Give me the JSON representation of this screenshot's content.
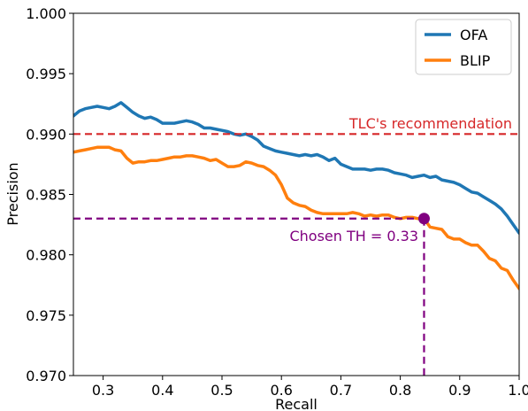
{
  "chart_data": {
    "type": "line",
    "xlabel": "Recall",
    "ylabel": "Precision",
    "xlim": [
      0.25,
      1.0
    ],
    "ylim": [
      0.97,
      1.0
    ],
    "x_ticks": [
      0.3,
      0.4,
      0.5,
      0.6,
      0.7,
      0.8,
      0.9,
      1.0
    ],
    "x_tick_labels": [
      "0.3",
      "0.4",
      "0.5",
      "0.6",
      "0.7",
      "0.8",
      "0.9",
      "1.0"
    ],
    "y_ticks": [
      0.97,
      0.975,
      0.98,
      0.985,
      0.99,
      0.995,
      1.0
    ],
    "y_tick_labels": [
      "0.970",
      "0.975",
      "0.980",
      "0.985",
      "0.990",
      "0.995",
      "1.000"
    ],
    "grid": false,
    "legend_position": "top-right",
    "series": [
      {
        "name": "OFA",
        "color": "#1f77b4",
        "x": [
          0.25,
          0.26,
          0.27,
          0.28,
          0.29,
          0.3,
          0.31,
          0.32,
          0.33,
          0.34,
          0.35,
          0.36,
          0.37,
          0.38,
          0.39,
          0.4,
          0.41,
          0.42,
          0.43,
          0.44,
          0.45,
          0.46,
          0.47,
          0.48,
          0.49,
          0.5,
          0.51,
          0.52,
          0.53,
          0.54,
          0.55,
          0.56,
          0.57,
          0.58,
          0.59,
          0.6,
          0.61,
          0.62,
          0.63,
          0.64,
          0.65,
          0.66,
          0.67,
          0.68,
          0.69,
          0.7,
          0.71,
          0.72,
          0.73,
          0.74,
          0.75,
          0.76,
          0.77,
          0.78,
          0.79,
          0.8,
          0.81,
          0.82,
          0.83,
          0.84,
          0.85,
          0.86,
          0.87,
          0.88,
          0.89,
          0.9,
          0.91,
          0.92,
          0.93,
          0.94,
          0.95,
          0.96,
          0.97,
          0.98,
          0.99,
          1.0
        ],
        "y": [
          0.9915,
          0.9919,
          0.9921,
          0.9922,
          0.9923,
          0.9922,
          0.9921,
          0.9923,
          0.9926,
          0.9922,
          0.9918,
          0.9915,
          0.9913,
          0.9914,
          0.9912,
          0.9909,
          0.9909,
          0.9909,
          0.991,
          0.9911,
          0.991,
          0.9908,
          0.9905,
          0.9905,
          0.9904,
          0.9903,
          0.9902,
          0.99,
          0.9899,
          0.99,
          0.9898,
          0.9895,
          0.989,
          0.9888,
          0.9886,
          0.9885,
          0.9884,
          0.9883,
          0.9882,
          0.9883,
          0.9882,
          0.9883,
          0.9881,
          0.9878,
          0.988,
          0.9875,
          0.9873,
          0.9871,
          0.9871,
          0.9871,
          0.987,
          0.9871,
          0.9871,
          0.987,
          0.9868,
          0.9867,
          0.9866,
          0.9864,
          0.9865,
          0.9866,
          0.9864,
          0.9865,
          0.9862,
          0.9861,
          0.986,
          0.9858,
          0.9855,
          0.9852,
          0.9851,
          0.9848,
          0.9845,
          0.9842,
          0.9838,
          0.9832,
          0.9825,
          0.9818
        ]
      },
      {
        "name": "BLIP",
        "color": "#ff7f0e",
        "x": [
          0.25,
          0.26,
          0.27,
          0.28,
          0.29,
          0.3,
          0.31,
          0.32,
          0.33,
          0.34,
          0.35,
          0.36,
          0.37,
          0.38,
          0.39,
          0.4,
          0.41,
          0.42,
          0.43,
          0.44,
          0.45,
          0.46,
          0.47,
          0.48,
          0.49,
          0.5,
          0.51,
          0.52,
          0.53,
          0.54,
          0.55,
          0.56,
          0.57,
          0.58,
          0.59,
          0.6,
          0.61,
          0.62,
          0.63,
          0.64,
          0.65,
          0.66,
          0.67,
          0.68,
          0.69,
          0.7,
          0.71,
          0.72,
          0.73,
          0.74,
          0.75,
          0.76,
          0.77,
          0.78,
          0.79,
          0.8,
          0.81,
          0.82,
          0.83,
          0.84,
          0.85,
          0.86,
          0.87,
          0.88,
          0.89,
          0.9,
          0.91,
          0.92,
          0.93,
          0.94,
          0.95,
          0.96,
          0.97,
          0.98,
          0.99,
          1.0
        ],
        "y": [
          0.9885,
          0.9886,
          0.9887,
          0.9888,
          0.9889,
          0.9889,
          0.9889,
          0.9887,
          0.9886,
          0.988,
          0.9876,
          0.9877,
          0.9877,
          0.9878,
          0.9878,
          0.9879,
          0.988,
          0.9881,
          0.9881,
          0.9882,
          0.9882,
          0.9881,
          0.988,
          0.9878,
          0.9879,
          0.9876,
          0.9873,
          0.9873,
          0.9874,
          0.9877,
          0.9876,
          0.9874,
          0.9873,
          0.987,
          0.9866,
          0.9858,
          0.9847,
          0.9843,
          0.9841,
          0.984,
          0.9837,
          0.9835,
          0.9834,
          0.9834,
          0.9834,
          0.9834,
          0.9834,
          0.9835,
          0.9834,
          0.9832,
          0.9833,
          0.9832,
          0.9833,
          0.9833,
          0.9831,
          0.983,
          0.9831,
          0.9831,
          0.983,
          0.983,
          0.9823,
          0.9822,
          0.9821,
          0.9815,
          0.9813,
          0.9813,
          0.981,
          0.9808,
          0.9808,
          0.9803,
          0.9797,
          0.9795,
          0.9789,
          0.9787,
          0.9779,
          0.9772
        ]
      }
    ],
    "reference_lines": [
      {
        "label": "TLC's recommendation",
        "orientation": "horizontal",
        "y": 0.99,
        "color": "#d62728"
      },
      {
        "label": "Chosen TH = 0.33",
        "orientation": "crosshair",
        "x": 0.84,
        "y": 0.983,
        "color": "#800080"
      }
    ],
    "marker": {
      "x": 0.84,
      "y": 0.983,
      "color": "#800080"
    }
  }
}
